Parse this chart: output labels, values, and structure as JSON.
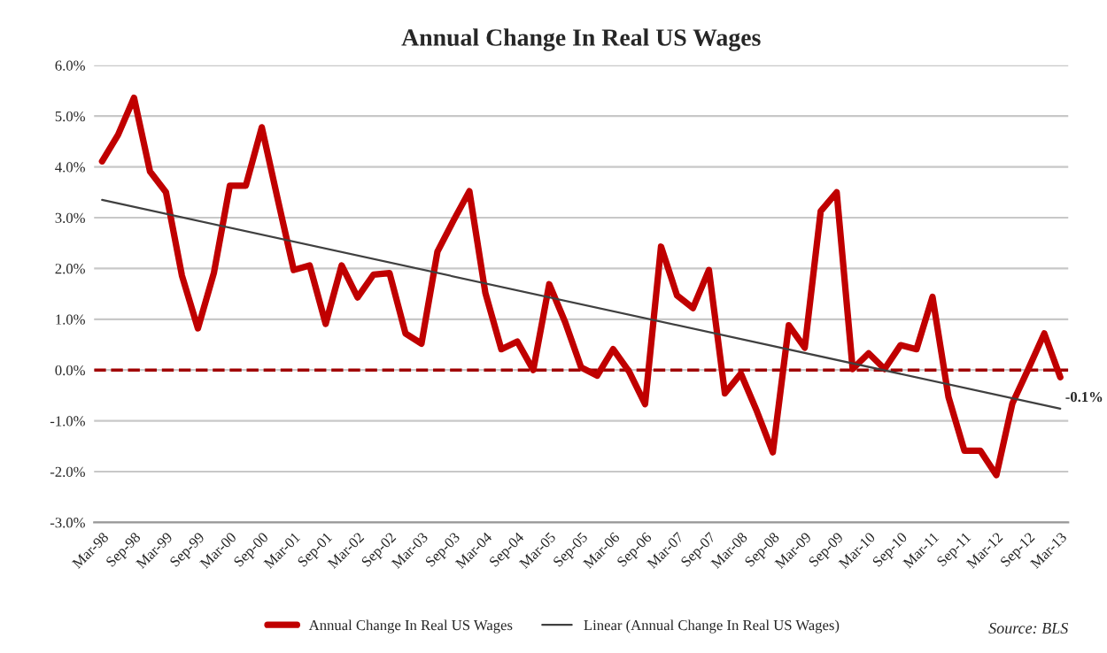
{
  "chart_data": {
    "type": "line",
    "title": "Annual Change In Real US Wages",
    "categories": [
      "Mar-98",
      null,
      "Sep-98",
      null,
      "Mar-99",
      null,
      "Sep-99",
      null,
      "Mar-00",
      null,
      "Sep-00",
      null,
      "Mar-01",
      null,
      "Sep-01",
      null,
      "Mar-02",
      null,
      "Sep-02",
      null,
      "Mar-03",
      null,
      "Sep-03",
      null,
      "Mar-04",
      null,
      "Sep-04",
      null,
      "Mar-05",
      null,
      "Sep-05",
      null,
      "Mar-06",
      null,
      "Sep-06",
      null,
      "Mar-07",
      null,
      "Sep-07",
      null,
      "Mar-08",
      null,
      "Sep-08",
      null,
      "Mar-09",
      null,
      "Sep-09",
      null,
      "Mar-10",
      null,
      "Sep-10",
      null,
      "Mar-11",
      null,
      "Sep-11",
      null,
      "Mar-12",
      null,
      "Sep-12",
      null,
      "Mar-13"
    ],
    "series": [
      {
        "name": "Annual Change In Real US Wages",
        "color": "#c00000",
        "line_style": "solid",
        "values": [
          4.11,
          4.63,
          5.36,
          3.91,
          3.5,
          1.86,
          0.82,
          1.91,
          3.63,
          3.63,
          4.78,
          3.36,
          1.97,
          2.06,
          0.91,
          2.06,
          1.43,
          1.88,
          1.91,
          0.72,
          0.52,
          2.33,
          2.94,
          3.52,
          1.52,
          0.41,
          0.56,
          0.0,
          1.69,
          0.94,
          0.05,
          -0.11,
          0.41,
          -0.03,
          -0.67,
          2.43,
          1.47,
          1.22,
          1.97,
          -0.46,
          -0.07,
          -0.81,
          -1.62,
          0.88,
          0.44,
          3.13,
          3.5,
          0.02,
          0.33,
          0.02,
          0.49,
          0.41,
          1.44,
          -0.53,
          -1.59,
          -1.59,
          -2.07,
          -0.66,
          0.02,
          0.72,
          -0.14
        ],
        "value_labels": [
          null,
          null,
          null,
          null,
          null,
          null,
          null,
          null,
          null,
          null,
          null,
          null,
          null,
          null,
          null,
          null,
          null,
          null,
          null,
          null,
          null,
          null,
          null,
          null,
          null,
          null,
          null,
          null,
          null,
          null,
          null,
          null,
          null,
          null,
          null,
          null,
          null,
          null,
          null,
          null,
          null,
          null,
          null,
          null,
          null,
          null,
          null,
          null,
          null,
          null,
          null,
          null,
          null,
          null,
          null,
          null,
          null,
          null,
          null,
          null,
          "-0.1%"
        ]
      },
      {
        "name": "Linear (Annual Change In Real US Wages)",
        "color": "#404040",
        "line_style": "solid",
        "values": [
          3.35,
          null,
          null,
          null,
          null,
          null,
          null,
          null,
          null,
          null,
          null,
          null,
          null,
          null,
          null,
          null,
          null,
          null,
          null,
          null,
          null,
          null,
          null,
          null,
          null,
          null,
          null,
          null,
          null,
          null,
          null,
          null,
          null,
          null,
          null,
          null,
          null,
          null,
          null,
          null,
          null,
          null,
          null,
          null,
          null,
          null,
          null,
          null,
          null,
          null,
          null,
          null,
          null,
          null,
          null,
          null,
          null,
          null,
          null,
          null,
          -0.76
        ]
      }
    ],
    "ylim": [
      -3,
      6
    ],
    "yticks": [
      {
        "value": -3,
        "label": "-3.0%"
      },
      {
        "value": -2,
        "label": "-2.0%"
      },
      {
        "value": -1,
        "label": "-1.0%"
      },
      {
        "value": 0,
        "label": "0.0%"
      },
      {
        "value": 1,
        "label": "1.0%"
      },
      {
        "value": 2,
        "label": "2.0%"
      },
      {
        "value": 3,
        "label": "3.0%"
      },
      {
        "value": 4,
        "label": "4.0%"
      },
      {
        "value": 5,
        "label": "5.0%"
      },
      {
        "value": 6,
        "label": "6.0%"
      }
    ],
    "ref_lines": [
      {
        "axis": "y",
        "value": 0,
        "color": "#a00000",
        "line_style": "dashed"
      }
    ],
    "grid": "y",
    "legend": "bottom",
    "annotations": [
      "Source: BLS"
    ]
  }
}
